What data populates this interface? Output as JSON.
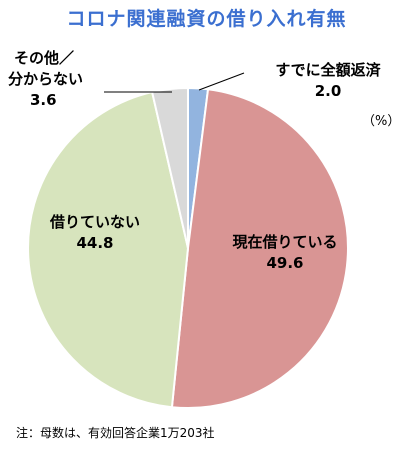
{
  "chart_data": {
    "type": "pie",
    "title": "コロナ関連融資の借り入れ有無",
    "unit": "（%）",
    "start_angle": 90,
    "direction": "clockwise",
    "slices": [
      {
        "label": "すでに全額返済",
        "value": 2.0,
        "value_text": "2.0",
        "color": "#92b4df"
      },
      {
        "label": "現在借りている",
        "value": 49.6,
        "value_text": "49.6",
        "color": "#d99594"
      },
      {
        "label": "借りていない",
        "value": 44.8,
        "value_text": "44.8",
        "color": "#d7e4bd"
      },
      {
        "label": "その他／分からない",
        "label_line1": "その他／",
        "label_line2": "分からない",
        "value": 3.6,
        "value_text": "3.6",
        "color": "#d9d9d9"
      }
    ],
    "footnote": "注：母数は、有効回答企業1万203社"
  }
}
